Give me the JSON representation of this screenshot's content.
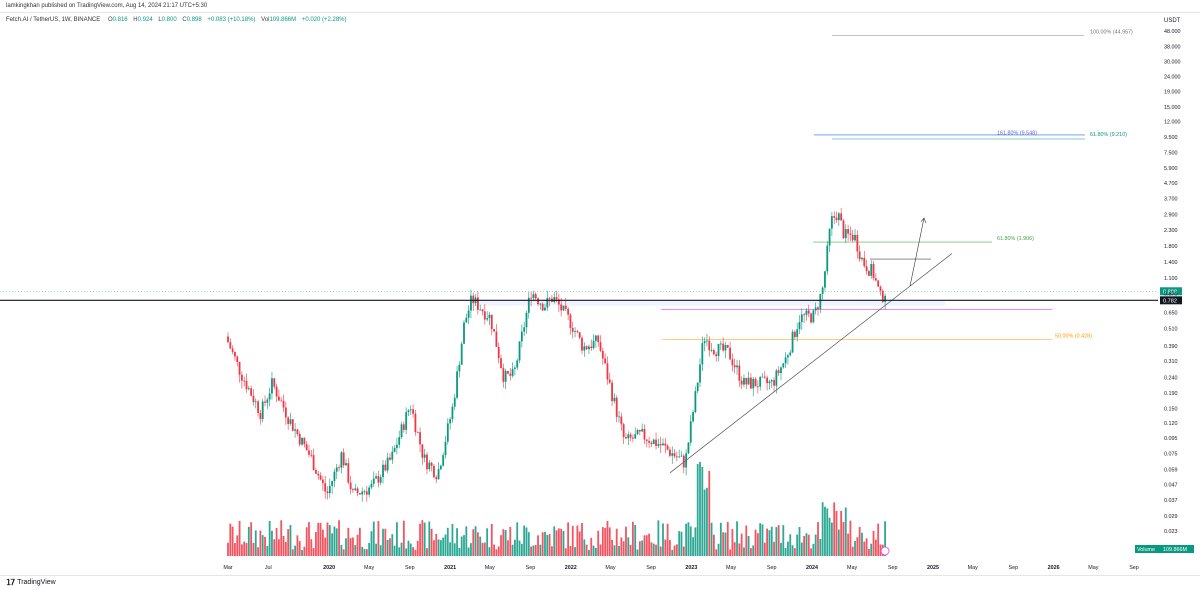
{
  "header": {
    "publish_line": "lamkingkhan published on TradingView.com, Aug 14, 2024 21:17 UTC+5:30"
  },
  "legend": {
    "symbol": "Fetch.AI / TetherUS, 1W, BINANCE",
    "open_label": "O",
    "open": "0.816",
    "high_label": "H",
    "high": "0.924",
    "low_label": "L",
    "low": "0.800",
    "close_label": "C",
    "close": "0.898",
    "change": "+0.083 (+10.18%)",
    "vol_label": "Vol",
    "vol": "109.866M",
    "vol_change": "+0.020 (+2.28%)"
  },
  "footer": {
    "brand": "TradingView"
  },
  "colors": {
    "up": "#089981",
    "down": "#f23645"
  },
  "chart_data": {
    "type": "candlestick",
    "scale": "log",
    "currency": "USDT",
    "y_ticks": [
      "48.000",
      "38.000",
      "30.000",
      "24.000",
      "19.000",
      "15.000",
      "12.000",
      "9.500",
      "7.500",
      "5.900",
      "4.700",
      "3.700",
      "2.900",
      "2.300",
      "1.800",
      "1.400",
      "1.100",
      "0.870",
      "0.650",
      "0.510",
      "0.390",
      "0.310",
      "0.240",
      "0.190",
      "0.150",
      "0.120",
      "0.095",
      "0.075",
      "0.059",
      "0.047",
      "0.037",
      "0.029",
      "0.023"
    ],
    "y_tick_values": [
      48,
      38,
      30,
      24,
      19,
      15,
      12,
      9.5,
      7.5,
      5.9,
      4.7,
      3.7,
      2.9,
      2.3,
      1.8,
      1.4,
      1.1,
      0.87,
      0.65,
      0.51,
      0.39,
      0.31,
      0.24,
      0.19,
      0.15,
      0.12,
      0.095,
      0.075,
      0.059,
      0.047,
      0.037,
      0.029,
      0.023
    ],
    "x_ticks": [
      "Mar",
      "Jul",
      "2020",
      "May",
      "Sep",
      "2021",
      "May",
      "Sep",
      "2022",
      "May",
      "Sep",
      "2023",
      "May",
      "Sep",
      "2024",
      "May",
      "Sep",
      "2025",
      "May",
      "Sep",
      "2026",
      "May",
      "Sep"
    ],
    "x_tick_dates": [
      "2019-03-01",
      "2019-07-01",
      "2020-01-01",
      "2020-05-01",
      "2020-09-01",
      "2021-01-01",
      "2021-05-01",
      "2021-09-01",
      "2022-01-01",
      "2022-05-01",
      "2022-09-01",
      "2023-01-01",
      "2023-05-01",
      "2023-09-01",
      "2024-01-01",
      "2024-05-01",
      "2024-09-01",
      "2025-01-01",
      "2025-05-01",
      "2025-09-01",
      "2026-01-01",
      "2026-05-01",
      "2026-09-01"
    ],
    "price_anchors": [
      {
        "date": "2019-03-01",
        "price": 0.45
      },
      {
        "date": "2019-04-15",
        "price": 0.26
      },
      {
        "date": "2019-06-15",
        "price": 0.14
      },
      {
        "date": "2019-07-20",
        "price": 0.22
      },
      {
        "date": "2019-09-15",
        "price": 0.12
      },
      {
        "date": "2019-11-15",
        "price": 0.07
      },
      {
        "date": "2020-01-01",
        "price": 0.04
      },
      {
        "date": "2020-02-15",
        "price": 0.075
      },
      {
        "date": "2020-03-20",
        "price": 0.04
      },
      {
        "date": "2020-05-15",
        "price": 0.045
      },
      {
        "date": "2020-07-15",
        "price": 0.07
      },
      {
        "date": "2020-09-10",
        "price": 0.16
      },
      {
        "date": "2020-10-20",
        "price": 0.07
      },
      {
        "date": "2020-12-01",
        "price": 0.055
      },
      {
        "date": "2021-01-15",
        "price": 0.15
      },
      {
        "date": "2021-02-20",
        "price": 0.55
      },
      {
        "date": "2021-03-15",
        "price": 0.8
      },
      {
        "date": "2021-05-10",
        "price": 0.6
      },
      {
        "date": "2021-06-20",
        "price": 0.24
      },
      {
        "date": "2021-07-20",
        "price": 0.25
      },
      {
        "date": "2021-09-10",
        "price": 0.9
      },
      {
        "date": "2021-10-20",
        "price": 0.72
      },
      {
        "date": "2021-11-15",
        "price": 0.82
      },
      {
        "date": "2022-01-10",
        "price": 0.55
      },
      {
        "date": "2022-02-15",
        "price": 0.38
      },
      {
        "date": "2022-04-01",
        "price": 0.42
      },
      {
        "date": "2022-05-15",
        "price": 0.18
      },
      {
        "date": "2022-06-20",
        "price": 0.09
      },
      {
        "date": "2022-08-10",
        "price": 0.1
      },
      {
        "date": "2022-10-10",
        "price": 0.085
      },
      {
        "date": "2022-12-20",
        "price": 0.065
      },
      {
        "date": "2023-01-20",
        "price": 0.18
      },
      {
        "date": "2023-02-15",
        "price": 0.45
      },
      {
        "date": "2023-03-15",
        "price": 0.38
      },
      {
        "date": "2023-05-01",
        "price": 0.35
      },
      {
        "date": "2023-06-15",
        "price": 0.22
      },
      {
        "date": "2023-07-20",
        "price": 0.22
      },
      {
        "date": "2023-09-10",
        "price": 0.22
      },
      {
        "date": "2023-10-20",
        "price": 0.32
      },
      {
        "date": "2023-12-01",
        "price": 0.6
      },
      {
        "date": "2024-01-15",
        "price": 0.62
      },
      {
        "date": "2024-02-10",
        "price": 0.95
      },
      {
        "date": "2024-03-05",
        "price": 2.6
      },
      {
        "date": "2024-03-25",
        "price": 3.0
      },
      {
        "date": "2024-04-15",
        "price": 2.1
      },
      {
        "date": "2024-05-15",
        "price": 2.1
      },
      {
        "date": "2024-06-10",
        "price": 1.4
      },
      {
        "date": "2024-07-10",
        "price": 1.2
      },
      {
        "date": "2024-08-05",
        "price": 0.78
      },
      {
        "date": "2024-08-12",
        "price": 0.898
      }
    ],
    "current_price": "0.898",
    "level_price": "0.782",
    "annotations": [
      {
        "label": "100.00% (44.957)",
        "price": 44.957
      },
      {
        "label": "161.80% (9.548)",
        "price": 9.548
      },
      {
        "label": "61.80% (9.210)",
        "price": 9.21
      },
      {
        "label": "61.80% (1.906)",
        "price": 1.906
      },
      {
        "label": "50.00% (0.428)",
        "price": 0.428
      }
    ],
    "volume_label": "Volume",
    "volume_value": "109.866M"
  }
}
